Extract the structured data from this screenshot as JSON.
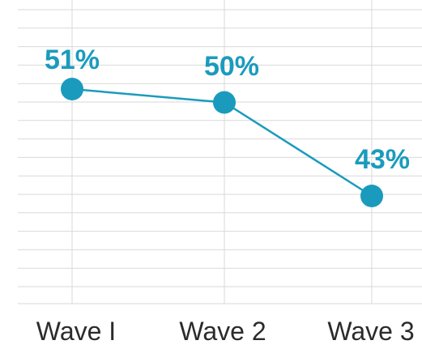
{
  "chart_data": {
    "type": "line",
    "categories": [
      "Wave I",
      "Wave 2",
      "Wave 3"
    ],
    "series": [
      {
        "values": [
          51,
          50,
          43
        ],
        "labels": [
          "51%",
          "50%",
          "43%"
        ],
        "color": "#1a9bbd"
      }
    ],
    "grid": true,
    "legend": "none"
  }
}
